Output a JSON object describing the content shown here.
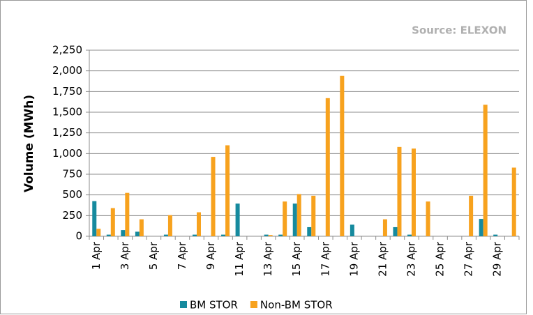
{
  "chart_data": {
    "type": "bar",
    "source": "Source: ELEXON",
    "ylabel": "Volume (MWh)",
    "categories": [
      "1 Apr",
      null,
      "3 Apr",
      null,
      "5 Apr",
      null,
      "7 Apr",
      null,
      "9 Apr",
      null,
      "11 Apr",
      null,
      "13 Apr",
      null,
      "15 Apr",
      null,
      "17 Apr",
      null,
      "19 Apr",
      null,
      "21 Apr",
      null,
      "23 Apr",
      null,
      "25 Apr",
      null,
      "27 Apr",
      null,
      "29 Apr",
      null
    ],
    "series": [
      {
        "name": "BM STOR",
        "color": "#168a9e",
        "values": [
          425,
          20,
          75,
          55,
          0,
          20,
          0,
          20,
          0,
          20,
          395,
          0,
          20,
          20,
          395,
          110,
          0,
          0,
          140,
          0,
          0,
          110,
          20,
          0,
          0,
          0,
          0,
          210,
          20,
          0
        ]
      },
      {
        "name": "Non-BM STOR",
        "color": "#f7a21e",
        "values": [
          90,
          340,
          525,
          205,
          0,
          255,
          0,
          290,
          960,
          1100,
          0,
          0,
          15,
          420,
          510,
          490,
          1670,
          1940,
          0,
          0,
          205,
          1080,
          1060,
          420,
          0,
          0,
          490,
          1590,
          0,
          830
        ]
      }
    ],
    "ylim": [
      0,
      2250
    ],
    "yticks": [
      0,
      250,
      500,
      750,
      {
        "value": 1000,
        "label": "1,000"
      },
      {
        "value": 1250,
        "label": "1,250"
      },
      {
        "value": 1500,
        "label": "1,500"
      },
      {
        "value": 1750,
        "label": "1,750"
      },
      {
        "value": 2000,
        "label": "2,000"
      },
      {
        "value": 2250,
        "label": "2,250"
      }
    ],
    "grid": true,
    "legend": "bottom"
  }
}
